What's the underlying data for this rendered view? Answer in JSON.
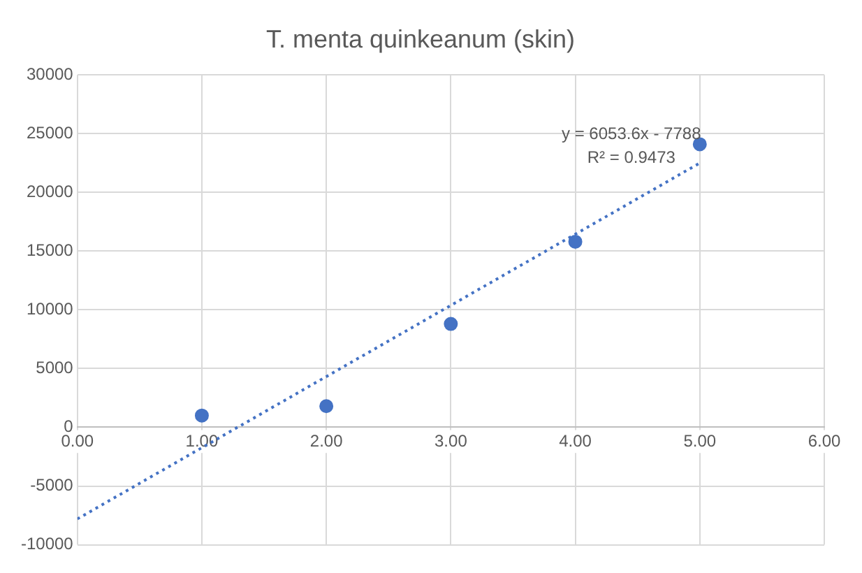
{
  "chart_data": {
    "type": "scatter",
    "title": "T. menta quinkeanum (skin)",
    "x": [
      1,
      2,
      3,
      4,
      5
    ],
    "series": [
      {
        "color": "#4472c4",
        "values": [
          1000,
          1800,
          8800,
          15800,
          24100
        ],
        "marker": "circle"
      },
      {
        "type": "line",
        "color": "#4472c4",
        "x": [
          0,
          5
        ],
        "values": [
          -7800,
          22500
        ],
        "line_style": "dotted",
        "marker": "none"
      }
    ],
    "annotations": [
      "y = 6053.6x - 7788",
      "R² = 0.9473"
    ],
    "xlim": [
      0,
      6
    ],
    "xticks": [
      {
        "value": 0,
        "label": "0.00"
      },
      {
        "value": 1,
        "label": "1.00"
      },
      {
        "value": 2,
        "label": "2.00"
      },
      {
        "value": 3,
        "label": "3.00"
      },
      {
        "value": 4,
        "label": "4.00"
      },
      {
        "value": 5,
        "label": "5.00"
      },
      {
        "value": 6,
        "label": "6.00"
      }
    ],
    "ylim": [
      -10000,
      30000
    ],
    "yticks": [
      -10000,
      -5000,
      0,
      5000,
      10000,
      15000,
      20000,
      25000,
      30000
    ],
    "grid": true,
    "legend": false
  }
}
